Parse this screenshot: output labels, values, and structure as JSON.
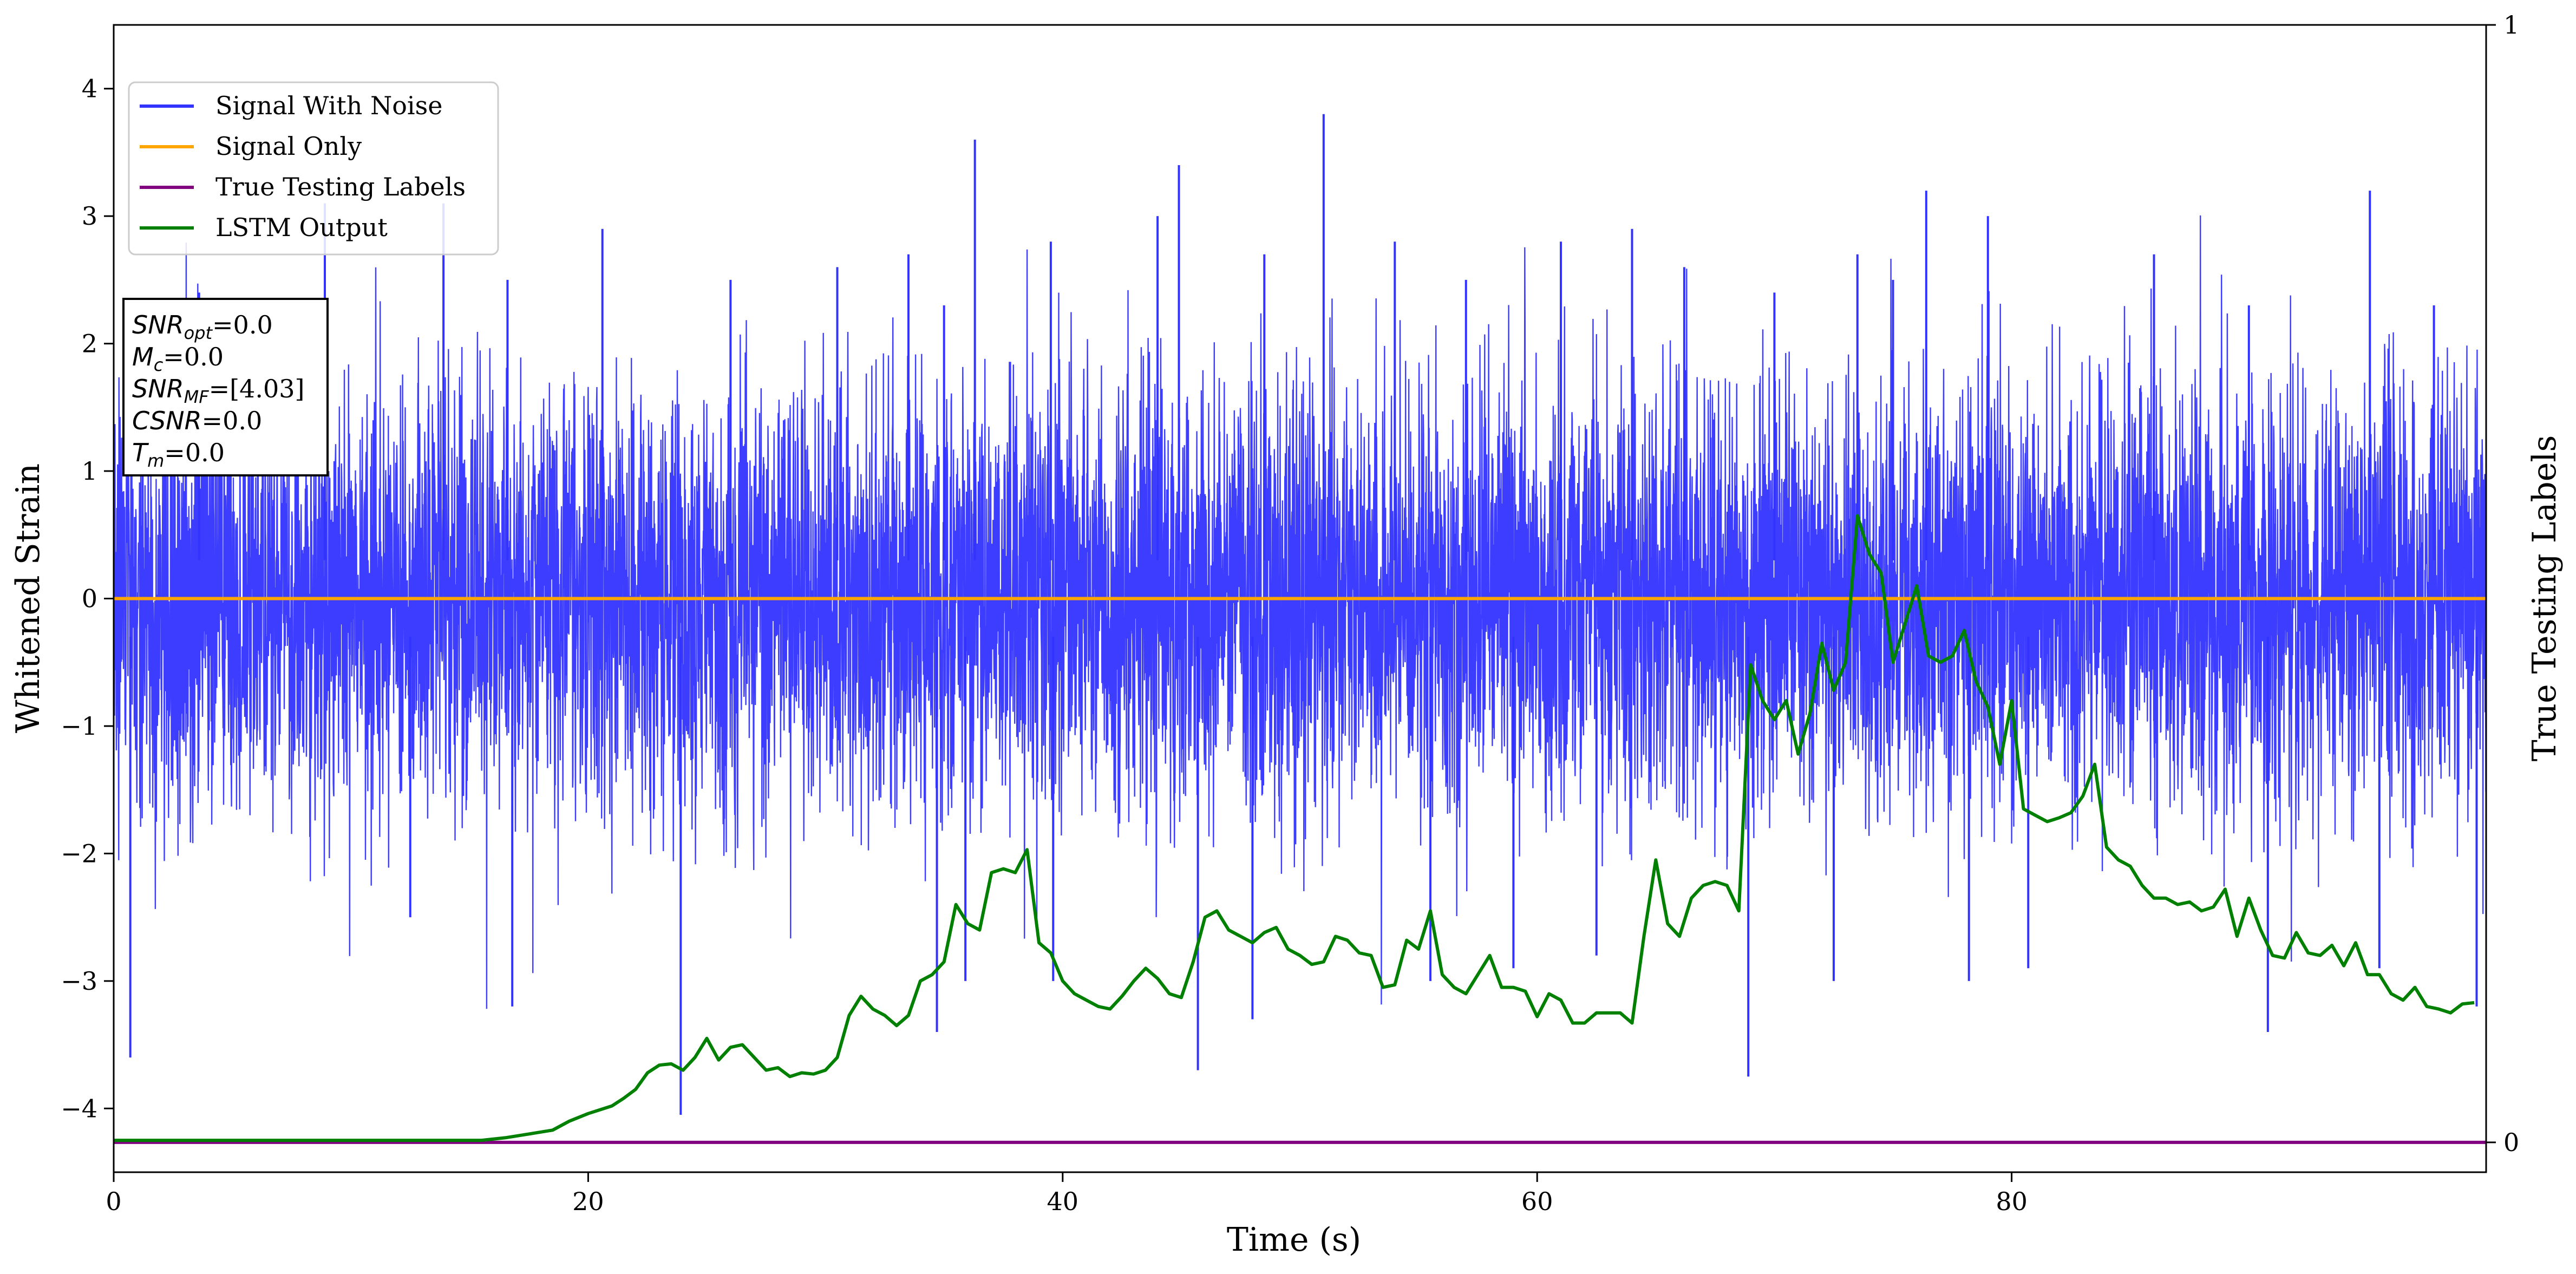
{
  "chart_data": {
    "type": "line",
    "xlabel": "Time (s)",
    "ylabel": "Whitened Strain",
    "y2label": "True Testing Labels",
    "xlim": [
      0,
      100
    ],
    "ylim": [
      -4.5,
      4.5
    ],
    "y2lim": [
      -0.0267,
      1
    ],
    "xticks": [
      0,
      20,
      40,
      60,
      80
    ],
    "yticks": [
      -4,
      -3,
      -2,
      -1,
      0,
      1,
      2,
      3,
      4
    ],
    "y2ticks": [
      0,
      1
    ],
    "legend_position": "upper-left",
    "series": [
      {
        "name": "Signal With Noise",
        "color": "#3333ff",
        "style": "dense-noise",
        "typical_range": [
          -1.3,
          1.3
        ],
        "peaks": [
          {
            "x": 3.6,
            "y": 2.4
          },
          {
            "x": 8.9,
            "y": 3.1
          },
          {
            "x": 13.9,
            "y": 3.1
          },
          {
            "x": 16.6,
            "y": 2.5
          },
          {
            "x": 20.6,
            "y": 2.9
          },
          {
            "x": 26.0,
            "y": 2.5
          },
          {
            "x": 30.5,
            "y": 2.6
          },
          {
            "x": 33.5,
            "y": 2.7
          },
          {
            "x": 35.0,
            "y": 2.3
          },
          {
            "x": 36.3,
            "y": 3.6
          },
          {
            "x": 39.5,
            "y": 2.8
          },
          {
            "x": 44.0,
            "y": 3.0
          },
          {
            "x": 44.9,
            "y": 3.4
          },
          {
            "x": 48.5,
            "y": 2.7
          },
          {
            "x": 51.0,
            "y": 3.8
          },
          {
            "x": 54.0,
            "y": 2.8
          },
          {
            "x": 57.0,
            "y": 2.5
          },
          {
            "x": 61.0,
            "y": 2.8
          },
          {
            "x": 64.0,
            "y": 2.9
          },
          {
            "x": 66.2,
            "y": 2.6
          },
          {
            "x": 70.0,
            "y": 2.4
          },
          {
            "x": 73.5,
            "y": 2.7
          },
          {
            "x": 75.0,
            "y": 2.5
          },
          {
            "x": 76.4,
            "y": 3.2
          },
          {
            "x": 79.0,
            "y": 3.0
          },
          {
            "x": 86.0,
            "y": 2.7
          },
          {
            "x": 90.0,
            "y": 2.3
          },
          {
            "x": 95.1,
            "y": 3.2
          },
          {
            "x": 97.8,
            "y": 2.3
          }
        ],
        "troughs": [
          {
            "x": 0.7,
            "y": -3.6
          },
          {
            "x": 12.5,
            "y": -2.5
          },
          {
            "x": 16.8,
            "y": -3.2
          },
          {
            "x": 23.9,
            "y": -4.05
          },
          {
            "x": 34.7,
            "y": -3.4
          },
          {
            "x": 35.9,
            "y": -3.0
          },
          {
            "x": 39.6,
            "y": -3.0
          },
          {
            "x": 45.7,
            "y": -3.7
          },
          {
            "x": 48.0,
            "y": -3.3
          },
          {
            "x": 55.5,
            "y": -3.0
          },
          {
            "x": 59.0,
            "y": -2.9
          },
          {
            "x": 62.5,
            "y": -2.8
          },
          {
            "x": 68.9,
            "y": -3.75
          },
          {
            "x": 72.5,
            "y": -3.0
          },
          {
            "x": 78.2,
            "y": -3.0
          },
          {
            "x": 80.7,
            "y": -2.9
          },
          {
            "x": 90.8,
            "y": -3.4
          },
          {
            "x": 95.5,
            "y": -2.9
          },
          {
            "x": 99.6,
            "y": -3.2
          }
        ]
      },
      {
        "name": "Signal Only",
        "color": "#ffa500",
        "x": [
          0,
          100
        ],
        "y": [
          0,
          0
        ]
      },
      {
        "name": "True Testing Labels",
        "color": "#800080",
        "axis": "right",
        "x": [
          0,
          100
        ],
        "y": [
          0,
          0
        ]
      },
      {
        "name": "LSTM Output",
        "color": "#008000",
        "x": [
          0,
          2,
          4,
          6,
          8,
          10,
          12,
          14,
          15.5,
          16.5,
          17.5,
          18.5,
          19.2,
          20,
          21,
          21.5,
          22,
          22.5,
          23,
          23.5,
          24,
          24.5,
          25,
          25.5,
          26,
          26.5,
          27,
          27.5,
          28,
          28.5,
          29,
          29.5,
          30,
          30.5,
          31,
          31.5,
          32,
          32.5,
          33,
          33.5,
          34,
          34.5,
          35,
          35.5,
          36,
          36.5,
          37,
          37.5,
          38,
          38.5,
          39,
          39.5,
          40,
          40.5,
          41,
          41.5,
          42,
          42.5,
          43,
          43.5,
          44,
          44.5,
          45,
          45.5,
          46,
          46.5,
          47,
          47.5,
          48,
          48.5,
          49,
          49.5,
          50,
          50.5,
          51,
          51.5,
          52,
          52.5,
          53,
          53.5,
          54,
          54.5,
          55,
          55.5,
          56,
          56.5,
          57,
          57.5,
          58,
          58.5,
          59,
          59.5,
          60,
          60.5,
          61,
          61.5,
          62,
          62.5,
          63,
          63.5,
          64,
          64.5,
          65,
          65.5,
          66,
          66.5,
          67,
          67.5,
          68,
          68.5,
          69,
          69.5,
          70,
          70.5,
          71,
          71.5,
          72,
          72.5,
          73,
          73.5,
          74,
          74.5,
          75,
          75.5,
          76,
          76.5,
          77,
          77.5,
          78,
          78.5,
          79,
          79.5,
          80,
          80.5,
          81,
          81.5,
          82,
          82.5,
          83,
          83.5,
          84,
          84.5,
          85,
          85.5,
          86,
          86.5,
          87,
          87.5,
          88,
          88.5,
          89,
          89.5,
          90,
          90.5,
          91,
          91.5,
          92,
          92.5,
          93,
          93.5,
          94,
          94.5,
          95,
          95.5,
          96,
          96.5,
          97,
          97.5,
          98,
          98.5,
          99,
          99.5
        ],
        "y": [
          -4.25,
          -4.25,
          -4.25,
          -4.25,
          -4.25,
          -4.25,
          -4.25,
          -4.25,
          -4.25,
          -4.23,
          -4.2,
          -4.17,
          -4.1,
          -4.04,
          -3.98,
          -3.92,
          -3.85,
          -3.72,
          -3.66,
          -3.65,
          -3.7,
          -3.6,
          -3.45,
          -3.62,
          -3.52,
          -3.5,
          -3.6,
          -3.7,
          -3.68,
          -3.75,
          -3.72,
          -3.73,
          -3.7,
          -3.6,
          -3.27,
          -3.12,
          -3.22,
          -3.27,
          -3.35,
          -3.27,
          -3.0,
          -2.95,
          -2.85,
          -2.4,
          -2.55,
          -2.6,
          -2.15,
          -2.12,
          -2.15,
          -1.97,
          -2.7,
          -2.78,
          -3.0,
          -3.1,
          -3.15,
          -3.2,
          -3.22,
          -3.12,
          -3.0,
          -2.9,
          -2.98,
          -3.1,
          -3.13,
          -2.85,
          -2.5,
          -2.45,
          -2.6,
          -2.65,
          -2.7,
          -2.62,
          -2.58,
          -2.75,
          -2.8,
          -2.87,
          -2.85,
          -2.65,
          -2.68,
          -2.78,
          -2.8,
          -3.05,
          -3.03,
          -2.68,
          -2.75,
          -2.45,
          -2.95,
          -3.05,
          -3.1,
          -2.95,
          -2.8,
          -3.05,
          -3.05,
          -3.08,
          -3.28,
          -3.1,
          -3.15,
          -3.33,
          -3.33,
          -3.25,
          -3.25,
          -3.25,
          -3.33,
          -2.65,
          -2.05,
          -2.55,
          -2.65,
          -2.35,
          -2.25,
          -2.22,
          -2.25,
          -2.45,
          -0.52,
          -0.8,
          -0.95,
          -0.8,
          -1.22,
          -0.9,
          -0.35,
          -0.72,
          -0.5,
          0.65,
          0.35,
          0.2,
          -0.5,
          -0.2,
          0.1,
          -0.45,
          -0.5,
          -0.45,
          -0.25,
          -0.65,
          -0.85,
          -1.3,
          -0.8,
          -1.65,
          -1.7,
          -1.75,
          -1.72,
          -1.68,
          -1.55,
          -1.3,
          -1.95,
          -2.05,
          -2.1,
          -2.25,
          -2.35,
          -2.35,
          -2.4,
          -2.38,
          -2.45,
          -2.42,
          -2.28,
          -2.65,
          -2.35,
          -2.6,
          -2.8,
          -2.82,
          -2.62,
          -2.78,
          -2.8,
          -2.72,
          -2.88,
          -2.7,
          -2.95,
          -2.95,
          -3.1,
          -3.15,
          -3.05,
          -3.2,
          -3.22,
          -3.25,
          -3.18,
          -3.17
        ]
      }
    ],
    "annotation": [
      {
        "sym": "SNR",
        "sub": "opt",
        "value": "=0.0"
      },
      {
        "sym": "M",
        "sub": "c",
        "value": "=0.0"
      },
      {
        "sym": "SNR",
        "sub": "MF",
        "value": "=[4.03]"
      },
      {
        "sym": "CSNR",
        "sub": "",
        "value": "=0.0"
      },
      {
        "sym": "T",
        "sub": "m",
        "value": "=0.0"
      }
    ]
  }
}
